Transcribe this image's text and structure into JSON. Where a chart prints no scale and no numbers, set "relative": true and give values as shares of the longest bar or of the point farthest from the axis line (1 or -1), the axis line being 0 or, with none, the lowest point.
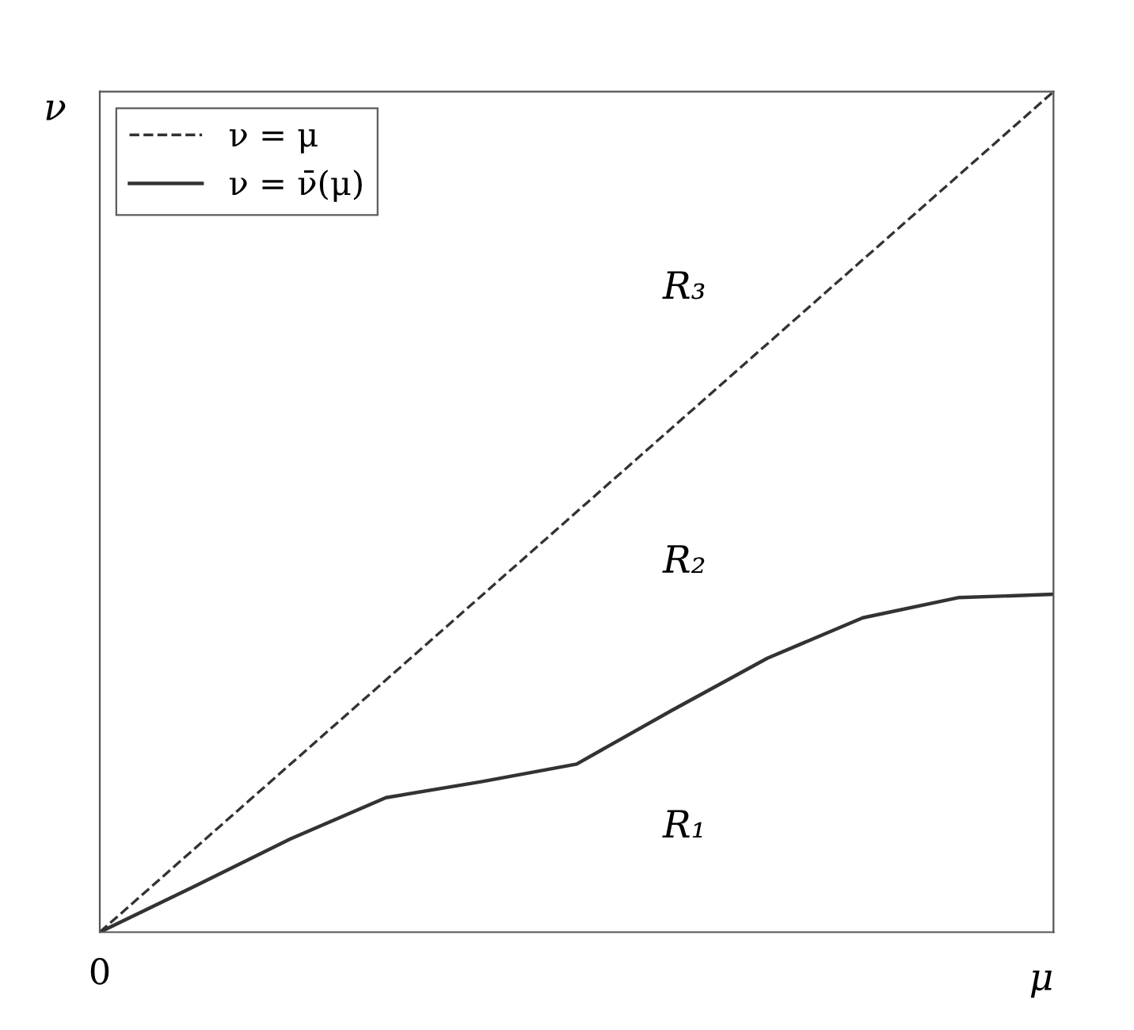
{
  "chart_data": {
    "type": "line",
    "relative": true,
    "xlabel": "μ",
    "ylabel": "ν",
    "legend": "top left",
    "marker": "none",
    "categories": [
      null,
      null,
      null,
      null,
      null,
      null,
      null,
      null,
      null,
      null,
      null
    ],
    "series": [
      {
        "name": "ν = μ",
        "color": "#333333",
        "line_style": "dashed",
        "values": [
          0,
          0.1,
          0.2,
          0.3,
          0.4,
          0.5,
          0.6,
          0.7,
          0.8,
          0.9,
          1
        ]
      },
      {
        "name": "ν = ν̄(μ)",
        "color": "#333333",
        "line_style": "solid",
        "values": [
          0,
          0.055,
          0.111,
          0.16,
          0.179,
          0.2,
          0.264,
          0.326,
          0.374,
          0.398,
          0.402
        ]
      }
    ],
    "annotations": [
      "0",
      "R₃",
      "R₂",
      "R₁"
    ]
  }
}
